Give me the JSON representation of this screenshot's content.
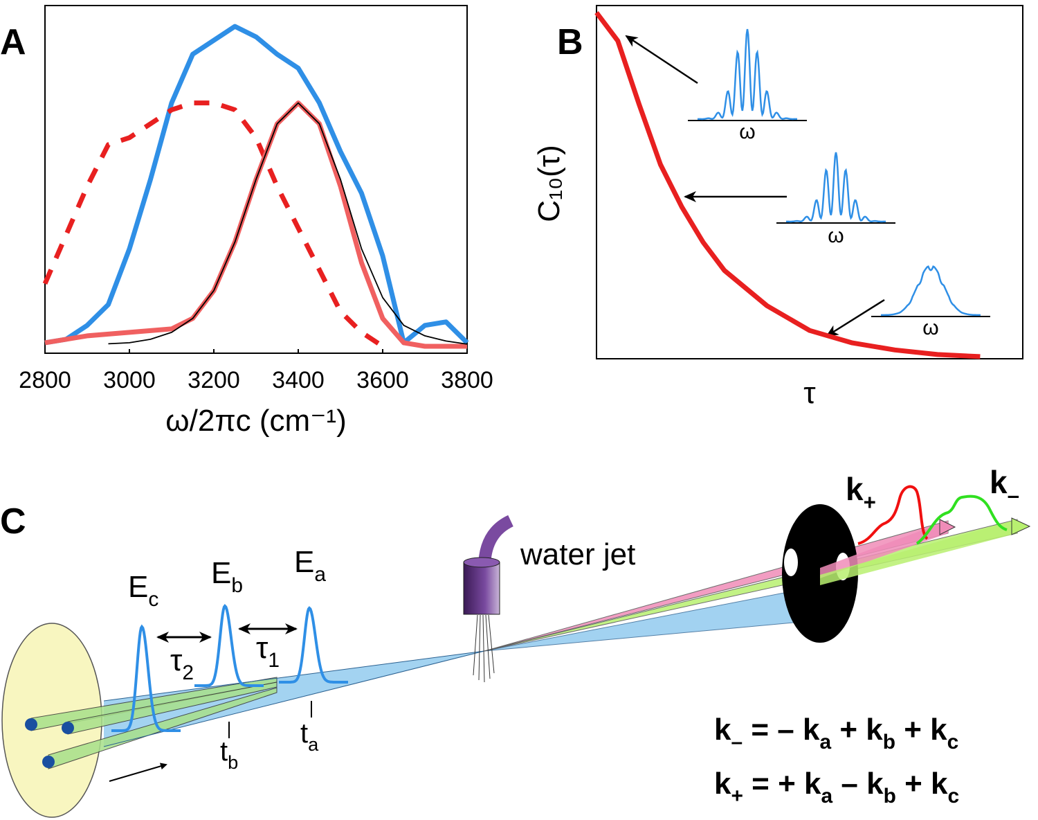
{
  "chart_data": [
    {
      "type": "line",
      "label": "A",
      "xlabel": "ω/2πc (cm⁻¹)",
      "x": [
        2800,
        2850,
        2900,
        2950,
        3000,
        3050,
        3100,
        3150,
        3200,
        3250,
        3300,
        3350,
        3400,
        3450,
        3500,
        3550,
        3600,
        3650,
        3700,
        3750,
        3800
      ],
      "xlim": [
        2800,
        3800
      ],
      "xticks": [
        2800,
        3000,
        3200,
        3400,
        3600,
        3800
      ],
      "ylim": [
        0,
        1
      ],
      "series": [
        {
          "color": "#2f8fe6",
          "style": "thick",
          "values": [
            0.03,
            0.04,
            0.08,
            0.14,
            0.3,
            0.5,
            0.72,
            0.86,
            0.9,
            0.94,
            0.91,
            0.86,
            0.82,
            0.72,
            0.58,
            0.46,
            0.28,
            0.03,
            0.08,
            0.09,
            0.03
          ]
        },
        {
          "color": "#e82020",
          "style": "dashed",
          "values": [
            0.2,
            0.34,
            0.48,
            0.6,
            0.62,
            0.66,
            0.7,
            0.72,
            0.72,
            0.7,
            0.62,
            0.48,
            0.36,
            0.24,
            0.12,
            0.06,
            0.02,
            null,
            null,
            null,
            null
          ]
        },
        {
          "color": "#f06060",
          "style": "thick",
          "values": [
            0.03,
            0.04,
            0.05,
            0.055,
            0.06,
            0.065,
            0.07,
            0.1,
            0.18,
            0.32,
            0.5,
            0.66,
            0.72,
            0.66,
            0.48,
            0.26,
            0.1,
            0.03,
            0.02,
            0.02,
            0.02
          ]
        },
        {
          "color": "#000000",
          "style": "thin",
          "values": [
            null,
            null,
            null,
            0.027,
            0.03,
            0.04,
            0.06,
            0.1,
            0.18,
            0.32,
            0.5,
            0.66,
            0.72,
            0.66,
            0.5,
            0.3,
            0.16,
            0.08,
            0.05,
            0.035,
            0.026
          ]
        }
      ]
    },
    {
      "type": "line",
      "label": "B",
      "xlabel": "τ",
      "ylabel": "C₁₀(τ)",
      "x": [
        0,
        0.05,
        0.1,
        0.15,
        0.2,
        0.25,
        0.3,
        0.4,
        0.5,
        0.6,
        0.7,
        0.8,
        0.9
      ],
      "xlim": [
        0,
        1
      ],
      "ylim": [
        0,
        1
      ],
      "series": [
        {
          "color": "#e82020",
          "style": "thick",
          "values": [
            0.98,
            0.9,
            0.72,
            0.55,
            0.43,
            0.33,
            0.25,
            0.15,
            0.08,
            0.045,
            0.025,
            0.012,
            0.006
          ]
        }
      ],
      "annotations": [
        "ω",
        "ω",
        "ω"
      ]
    }
  ],
  "diagram": {
    "label": "C",
    "pulses": [
      {
        "text": "E",
        "sub": "c"
      },
      {
        "text": "E",
        "sub": "b"
      },
      {
        "text": "E",
        "sub": "a"
      }
    ],
    "delays": [
      {
        "text": "τ",
        "sub": "2"
      },
      {
        "text": "τ",
        "sub": "1"
      }
    ],
    "times": [
      {
        "text": "t",
        "sub": "b"
      },
      {
        "text": "t",
        "sub": "a"
      }
    ],
    "jet": "water jet",
    "outputs": [
      {
        "text": "k",
        "sub": "+"
      },
      {
        "text": "k",
        "sub": "–"
      }
    ],
    "equations": [
      [
        {
          "text": "k",
          "sub": "–"
        },
        {
          "text": " = – "
        },
        {
          "text": "k",
          "sub": "a"
        },
        {
          "text": " + "
        },
        {
          "text": "k",
          "sub": "b"
        },
        {
          "text": " + "
        },
        {
          "text": "k",
          "sub": "c"
        }
      ],
      [
        {
          "text": "k",
          "sub": "+"
        },
        {
          "text": " = + "
        },
        {
          "text": "k",
          "sub": "a"
        },
        {
          "text": " – "
        },
        {
          "text": "k",
          "sub": "b"
        },
        {
          "text": " + "
        },
        {
          "text": "k",
          "sub": "c"
        }
      ]
    ]
  }
}
